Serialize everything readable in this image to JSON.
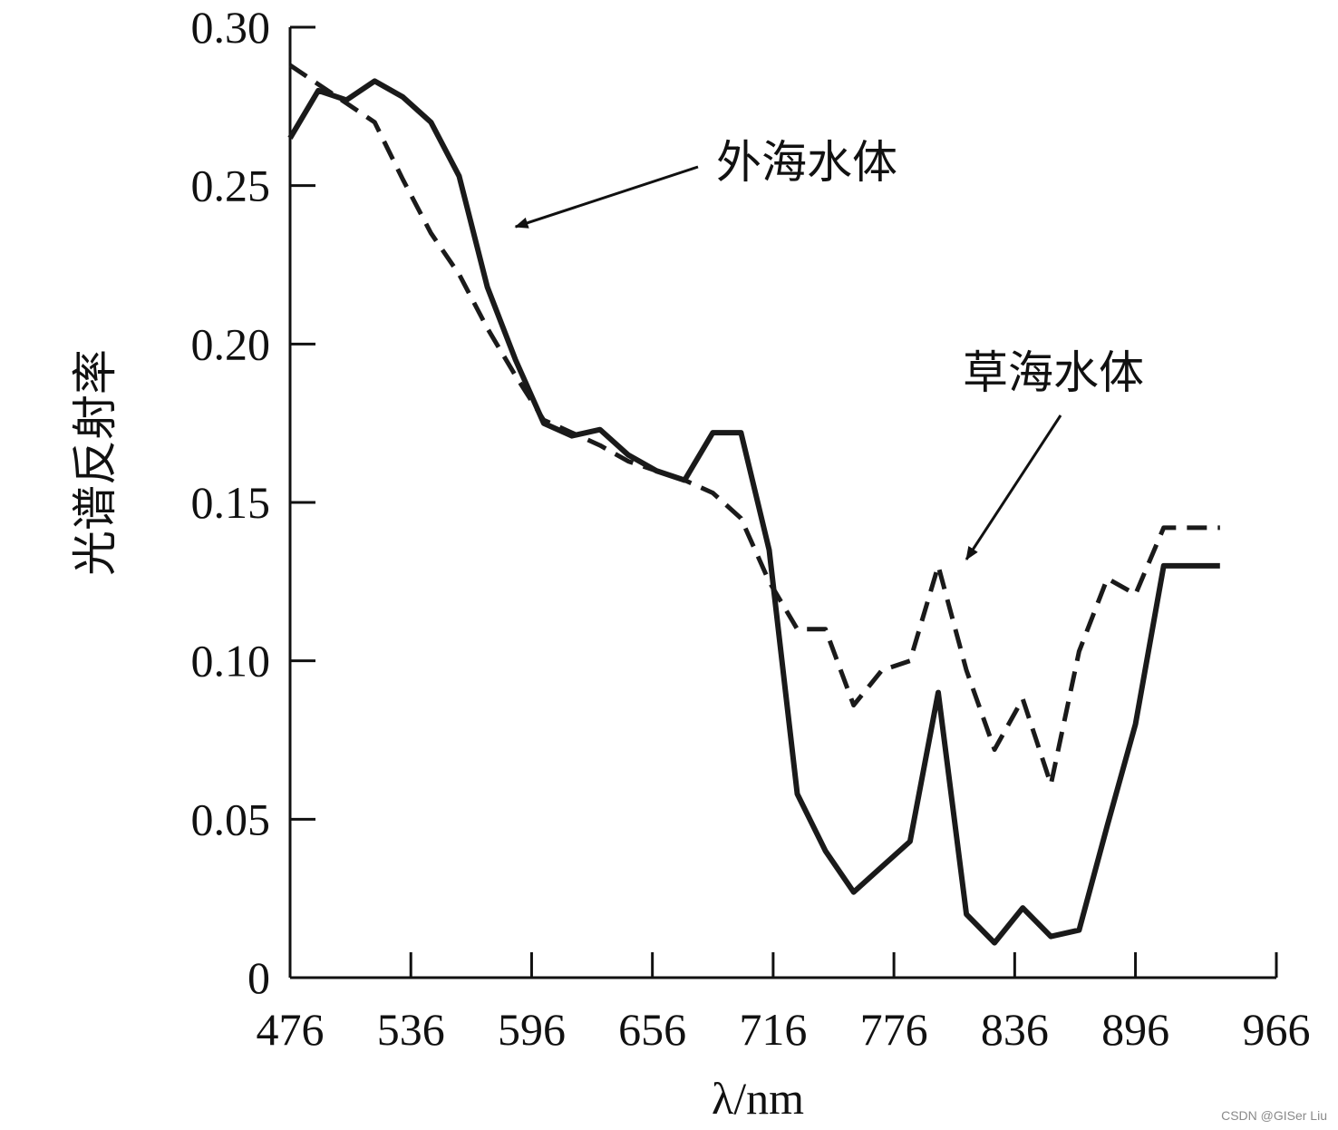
{
  "chart_data": {
    "type": "line",
    "xlabel": "λ/nm",
    "ylabel": "光谱反射率",
    "xlim": [
      476,
      966
    ],
    "ylim": [
      0,
      0.3
    ],
    "x_ticks": [
      "476",
      "536",
      "596",
      "656",
      "716",
      "776",
      "836",
      "896",
      "966"
    ],
    "y_ticks": [
      "0",
      "0.05",
      "0.10",
      "0.15",
      "0.20",
      "0.25",
      "0.30"
    ],
    "grid": false,
    "legend": "none",
    "series": [
      {
        "name": "外海水体",
        "style": "solid",
        "color": "#1a1a1a",
        "x": [
          476,
          490,
          504,
          518,
          532,
          546,
          560,
          574,
          588,
          602,
          616,
          630,
          644,
          658,
          672,
          686,
          700,
          714,
          728,
          742,
          756,
          770,
          784,
          798,
          812,
          826,
          840,
          854,
          868,
          882,
          896,
          910,
          924,
          938
        ],
        "y": [
          0.265,
          0.28,
          0.277,
          0.283,
          0.278,
          0.27,
          0.253,
          0.218,
          0.195,
          0.175,
          0.171,
          0.173,
          0.165,
          0.16,
          0.157,
          0.172,
          0.172,
          0.135,
          0.058,
          0.04,
          0.027,
          0.035,
          0.043,
          0.09,
          0.02,
          0.011,
          0.022,
          0.013,
          0.015,
          0.048,
          0.08,
          0.13,
          0.13,
          0.13
        ]
      },
      {
        "name": "草海水体",
        "style": "dashed",
        "color": "#1a1a1a",
        "x": [
          476,
          490,
          504,
          518,
          532,
          546,
          560,
          574,
          588,
          602,
          616,
          630,
          644,
          658,
          672,
          686,
          700,
          714,
          728,
          742,
          756,
          770,
          784,
          798,
          812,
          826,
          840,
          854,
          868,
          882,
          896,
          910,
          924,
          938
        ],
        "y": [
          0.288,
          0.282,
          0.276,
          0.27,
          0.252,
          0.235,
          0.222,
          0.205,
          0.19,
          0.176,
          0.172,
          0.168,
          0.163,
          0.16,
          0.157,
          0.153,
          0.145,
          0.125,
          0.11,
          0.11,
          0.086,
          0.097,
          0.1,
          0.13,
          0.097,
          0.072,
          0.088,
          0.061,
          0.103,
          0.126,
          0.121,
          0.142,
          0.142,
          0.142
        ]
      }
    ],
    "annotations": [
      {
        "text": "外海水体",
        "target_series": "外海水体",
        "target_x": 588,
        "target_y": 0.237
      },
      {
        "text": "草海水体",
        "target_series": "草海水体",
        "target_x": 812,
        "target_y": 0.132
      }
    ]
  },
  "watermark": "CSDN @GISer Liu"
}
